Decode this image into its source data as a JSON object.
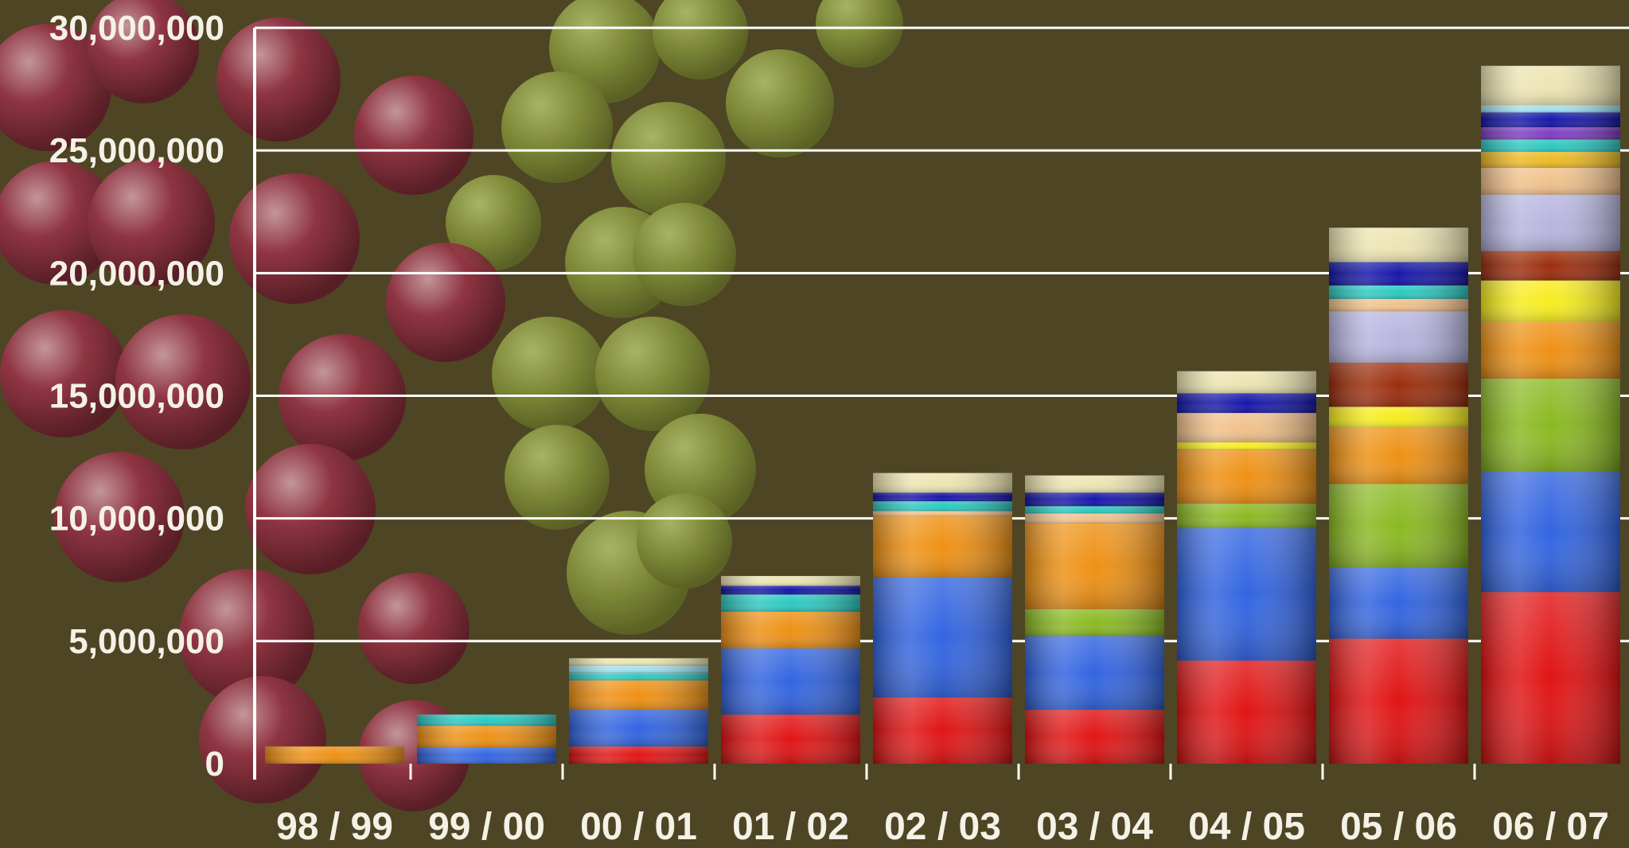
{
  "chart_data": {
    "type": "bar",
    "stacked": true,
    "title": "",
    "xlabel": "",
    "ylabel": "",
    "ylim": [
      0,
      30000000
    ],
    "y_ticks": [
      0,
      5000000,
      10000000,
      15000000,
      20000000,
      25000000,
      30000000
    ],
    "y_tick_labels": [
      "0",
      "5,000,000",
      "10,000,000",
      "15,000,000",
      "20,000,000",
      "25,000,000",
      "30,000,000"
    ],
    "categories": [
      "98 / 99",
      "99 / 00",
      "00 / 01",
      "01 / 02",
      "02 / 03",
      "03 / 04",
      "04 / 05",
      "05 / 06",
      "06 / 07"
    ],
    "grid": "horizontal",
    "legend": "none",
    "background_color": "#4e4525",
    "segment_colors": [
      "#e01010",
      "#2f62e0",
      "#88b81e",
      "#ee8f10",
      "#f6ec1a",
      "#9a2a08",
      "#b6b4df",
      "#f0c088",
      "#ecb820",
      "#28c8c0",
      "#7a3ac0",
      "#1212a8",
      "#9ee0ee",
      "#ece4b0"
    ],
    "series": [
      {
        "values": [
          0,
          0,
          700000,
          2000000,
          2700000,
          2200000,
          4200000,
          5100000,
          7000000
        ]
      },
      {
        "values": [
          0,
          650000,
          1500000,
          2700000,
          4900000,
          3000000,
          5400000,
          2900000,
          4900000
        ]
      },
      {
        "values": [
          0,
          0,
          0,
          0,
          0,
          1100000,
          1000000,
          3400000,
          3800000
        ]
      },
      {
        "values": [
          700000,
          900000,
          1200000,
          1500000,
          2500000,
          3500000,
          2200000,
          2300000,
          2300000
        ]
      },
      {
        "values": [
          0,
          0,
          0,
          0,
          0,
          0,
          300000,
          850000,
          1700000
        ]
      },
      {
        "values": [
          0,
          0,
          0,
          0,
          0,
          0,
          0,
          1800000,
          1200000
        ]
      },
      {
        "values": [
          0,
          0,
          0,
          0,
          0,
          0,
          0,
          2100000,
          2300000
        ]
      },
      {
        "values": [
          0,
          0,
          0,
          0,
          200000,
          400000,
          1200000,
          500000,
          1100000
        ]
      },
      {
        "values": [
          0,
          0,
          0,
          0,
          0,
          0,
          0,
          0,
          650000
        ]
      },
      {
        "values": [
          0,
          450000,
          300000,
          700000,
          400000,
          300000,
          0,
          550000,
          500000
        ]
      },
      {
        "values": [
          0,
          0,
          0,
          0,
          0,
          0,
          0,
          0,
          500000
        ]
      },
      {
        "values": [
          0,
          0,
          0,
          350000,
          350000,
          550000,
          800000,
          950000,
          600000
        ]
      },
      {
        "values": [
          0,
          0,
          300000,
          0,
          0,
          0,
          0,
          0,
          300000
        ]
      },
      {
        "values": [
          0,
          0,
          300000,
          400000,
          800000,
          700000,
          900000,
          1400000,
          1600000
        ]
      }
    ]
  }
}
